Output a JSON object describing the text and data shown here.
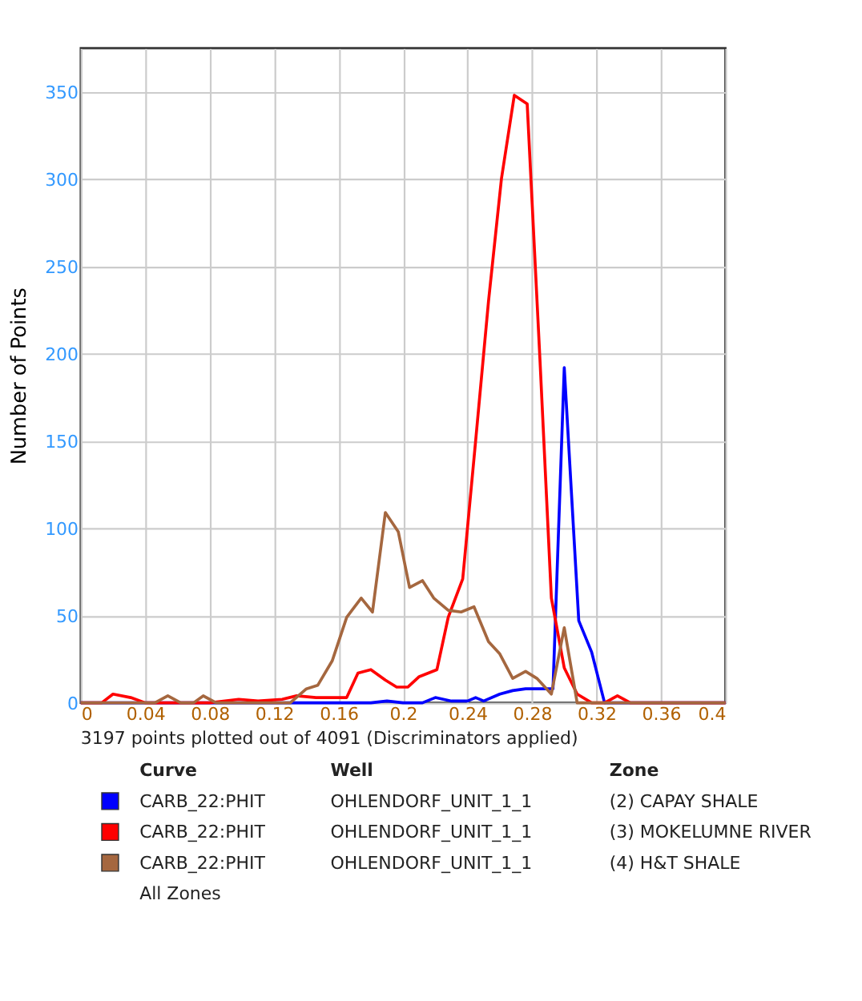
{
  "chart_data": {
    "type": "line",
    "ylabel": "Number of Points",
    "legend_title": "Curve",
    "xlim": [
      0,
      0.4
    ],
    "xticks": [
      0,
      0.04,
      0.08,
      0.12,
      0.16,
      0.2,
      0.24,
      0.28,
      0.32,
      0.36,
      0.4
    ],
    "ylim": [
      0,
      375
    ],
    "yticks": [
      0,
      50,
      100,
      150,
      200,
      250,
      300,
      350
    ],
    "grid": true,
    "legend": "bottom",
    "marker": "none",
    "line_style": "solid",
    "series": [
      {
        "name": "CARB_22:PHIT",
        "color": "#0000ff",
        "x": [
          0,
          0.18,
          0.19,
          0.2,
          0.212,
          0.22,
          0.23,
          0.24,
          0.245,
          0.25,
          0.26,
          0.268,
          0.276,
          0.284,
          0.293,
          0.3,
          0.309,
          0.317,
          0.325,
          0.4
        ],
        "values": [
          0,
          0,
          1,
          0,
          0,
          3,
          1,
          1,
          3,
          1,
          5,
          7,
          8,
          8,
          8,
          192,
          47,
          29,
          0,
          0
        ]
      },
      {
        "name": "CARB_22:PHIT",
        "color": "#ff0000",
        "x": [
          0,
          0.013,
          0.02,
          0.031,
          0.04,
          0.06,
          0.08,
          0.098,
          0.11,
          0.125,
          0.134,
          0.146,
          0.157,
          0.165,
          0.172,
          0.18,
          0.189,
          0.196,
          0.203,
          0.21,
          0.221,
          0.228,
          0.237,
          0.245,
          0.253,
          0.261,
          0.269,
          0.277,
          0.285,
          0.292,
          0.3,
          0.308,
          0.317,
          0.325,
          0.333,
          0.341,
          0.4
        ],
        "values": [
          0,
          0,
          5,
          3,
          0,
          0,
          0,
          2,
          1,
          2,
          4,
          3,
          3,
          3,
          17,
          19,
          13,
          9,
          9,
          15,
          19,
          49,
          71,
          150,
          230,
          300,
          348,
          343,
          195,
          60,
          20,
          5,
          0,
          0,
          4,
          0,
          0
        ]
      },
      {
        "name": "CARB_22:PHIT",
        "color": "#a5673f",
        "x": [
          0,
          0.046,
          0.054,
          0.062,
          0.07,
          0.076,
          0.084,
          0.13,
          0.14,
          0.147,
          0.156,
          0.165,
          0.174,
          0.181,
          0.189,
          0.197,
          0.204,
          0.212,
          0.219,
          0.228,
          0.236,
          0.244,
          0.253,
          0.26,
          0.268,
          0.276,
          0.283,
          0.292,
          0.3,
          0.308,
          0.4
        ],
        "values": [
          0,
          0,
          4,
          0,
          0,
          4,
          0,
          0,
          8,
          10,
          24,
          49,
          60,
          52,
          109,
          98,
          66,
          70,
          60,
          53,
          52,
          55,
          35,
          28,
          14,
          18,
          14,
          5,
          43,
          0,
          0
        ]
      }
    ],
    "annotations": [
      "3197 points plotted out of 4091 (Discriminators applied)",
      "Well",
      "Zone",
      "OHLENDORF_UNIT_1_1",
      "OHLENDORF_UNIT_1_1",
      "OHLENDORF_UNIT_1_1",
      "(2) CAPAY SHALE",
      "(3) MOKELUMNE RIVER",
      "(4) H&T SHALE",
      "All Zones"
    ]
  }
}
